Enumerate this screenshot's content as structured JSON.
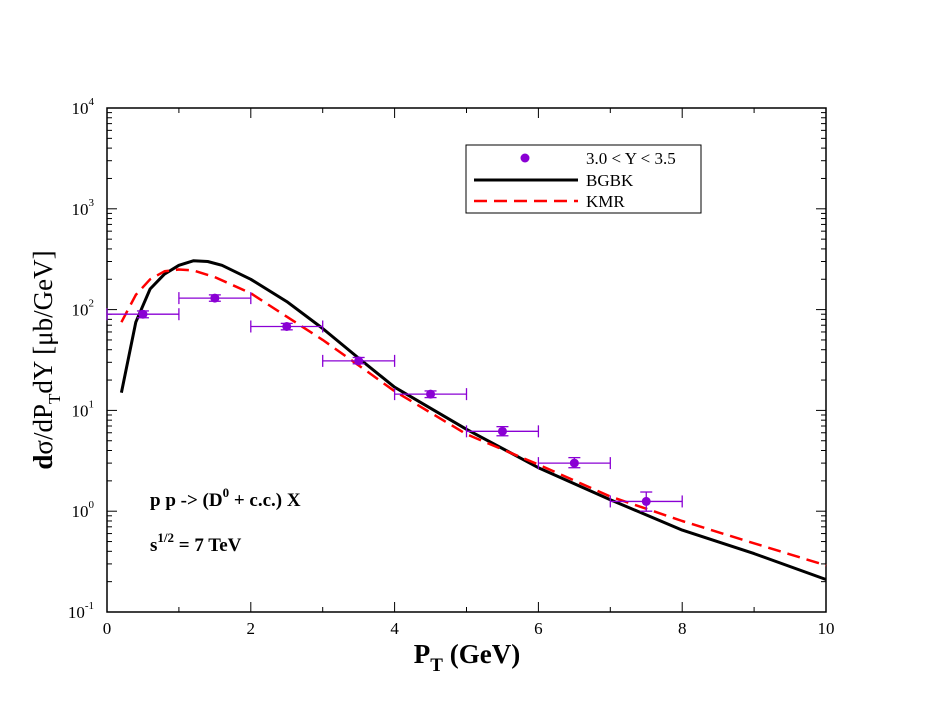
{
  "chart_data": {
    "type": "line",
    "x_title": {
      "main": "P",
      "sub": "T",
      "rest": " (GeV)"
    },
    "y_title": {
      "pre": "d",
      "sigma": "σ",
      "mid1": "/dP",
      "sub": "T",
      "mid2": "dY [",
      "mu": "μ",
      "post": "b/GeV]"
    },
    "xlim": [
      0,
      10
    ],
    "ylim": [
      0.1,
      10000
    ],
    "yscale": "log",
    "x_ticks": [
      {
        "value": 0,
        "label": "0"
      },
      {
        "value": 2,
        "label": "2"
      },
      {
        "value": 4,
        "label": "4"
      },
      {
        "value": 6,
        "label": "6"
      },
      {
        "value": 8,
        "label": "8"
      },
      {
        "value": 10,
        "label": "10"
      }
    ],
    "y_ticks": [
      {
        "value": 0.1,
        "base": "10",
        "exp": "-1"
      },
      {
        "value": 1,
        "base": "10",
        "exp": "0"
      },
      {
        "value": 10,
        "base": "10",
        "exp": "1"
      },
      {
        "value": 100,
        "base": "10",
        "exp": "2"
      },
      {
        "value": 1000,
        "base": "10",
        "exp": "3"
      },
      {
        "value": 10000,
        "base": "10",
        "exp": "4"
      }
    ],
    "series": [
      {
        "name": "3.0 < Y < 3.5",
        "kind": "points",
        "color": "#8a00d4",
        "points": [
          {
            "x": 0.5,
            "y": 90,
            "xerr": 0.5,
            "ylo": 83,
            "yhi": 97
          },
          {
            "x": 1.5,
            "y": 130,
            "xerr": 0.5,
            "ylo": 121,
            "yhi": 140
          },
          {
            "x": 2.5,
            "y": 68,
            "xerr": 0.5,
            "ylo": 63,
            "yhi": 73
          },
          {
            "x": 3.5,
            "y": 31,
            "xerr": 0.5,
            "ylo": 29,
            "yhi": 33.5
          },
          {
            "x": 4.5,
            "y": 14.5,
            "xerr": 0.5,
            "ylo": 13.4,
            "yhi": 15.6
          },
          {
            "x": 5.5,
            "y": 6.2,
            "xerr": 0.5,
            "ylo": 5.6,
            "yhi": 6.9
          },
          {
            "x": 6.5,
            "y": 3.0,
            "xerr": 0.5,
            "ylo": 2.7,
            "yhi": 3.4
          },
          {
            "x": 7.5,
            "y": 1.25,
            "xerr": 0.5,
            "ylo": 1.0,
            "yhi": 1.55
          }
        ]
      },
      {
        "name": "BGBK",
        "kind": "line",
        "style": "solid",
        "color": "#000000",
        "x": [
          0.2,
          0.4,
          0.6,
          0.8,
          1.0,
          1.2,
          1.4,
          1.6,
          2.0,
          2.5,
          3.0,
          3.5,
          4.0,
          5.0,
          6.0,
          7.0,
          8.0,
          9.0,
          10.0
        ],
        "y": [
          15,
          75,
          160,
          225,
          275,
          305,
          300,
          275,
          200,
          120,
          65,
          33,
          17,
          6.5,
          2.7,
          1.3,
          0.65,
          0.38,
          0.21
        ]
      },
      {
        "name": "KMR",
        "kind": "line",
        "style": "dashed",
        "color": "#ff0000",
        "x": [
          0.2,
          0.4,
          0.6,
          0.8,
          1.0,
          1.2,
          1.5,
          2.0,
          2.5,
          3.0,
          3.5,
          4.0,
          5.0,
          6.0,
          7.0,
          8.0,
          9.0,
          10.0
        ],
        "y": [
          75,
          140,
          200,
          240,
          250,
          245,
          210,
          145,
          85,
          50,
          28,
          15.5,
          5.8,
          2.9,
          1.4,
          0.8,
          0.48,
          0.29
        ]
      }
    ],
    "legend": {
      "position": "top-right",
      "entries": [
        "3.0 < Y < 3.5",
        "BGBK",
        "KMR"
      ]
    },
    "annotations": {
      "process": {
        "pre": "p p -> (D",
        "sup": "0",
        "post": " + c.c.) X"
      },
      "energy": {
        "pre": "s",
        "sup": "1/2",
        "post": " = 7 TeV"
      }
    }
  }
}
